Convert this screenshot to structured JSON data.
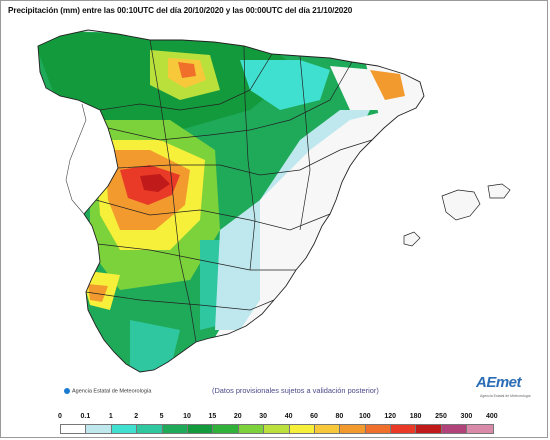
{
  "title": "Precipitación (mm) entre las 00:10UTC del día 20/10/2020 y las 00:00UTC del día 21/10/2020",
  "footer": {
    "credit": "Agencia Estatal de Meteorología",
    "disclaimer": "(Datos provisionales sujetos a validación posterior)"
  },
  "logo": {
    "name": "AEmet",
    "subtitle": "Agencia Estatal de Meteorología"
  },
  "legend": {
    "ticks": [
      "0",
      "0.1",
      "1",
      "2",
      "5",
      "10",
      "15",
      "20",
      "30",
      "40",
      "60",
      "80",
      "100",
      "120",
      "180",
      "250",
      "300",
      "400"
    ],
    "colors": [
      "#ffffff",
      "#bfe8ee",
      "#40e0d0",
      "#2ec7a0",
      "#1faa5a",
      "#139a3c",
      "#2fb13a",
      "#7cd23a",
      "#b9e03b",
      "#f6f03a",
      "#f7c93a",
      "#f39a2f",
      "#ef6f2b",
      "#e83a26",
      "#c11a1a",
      "#b2437a",
      "#d98aa8"
    ]
  }
}
